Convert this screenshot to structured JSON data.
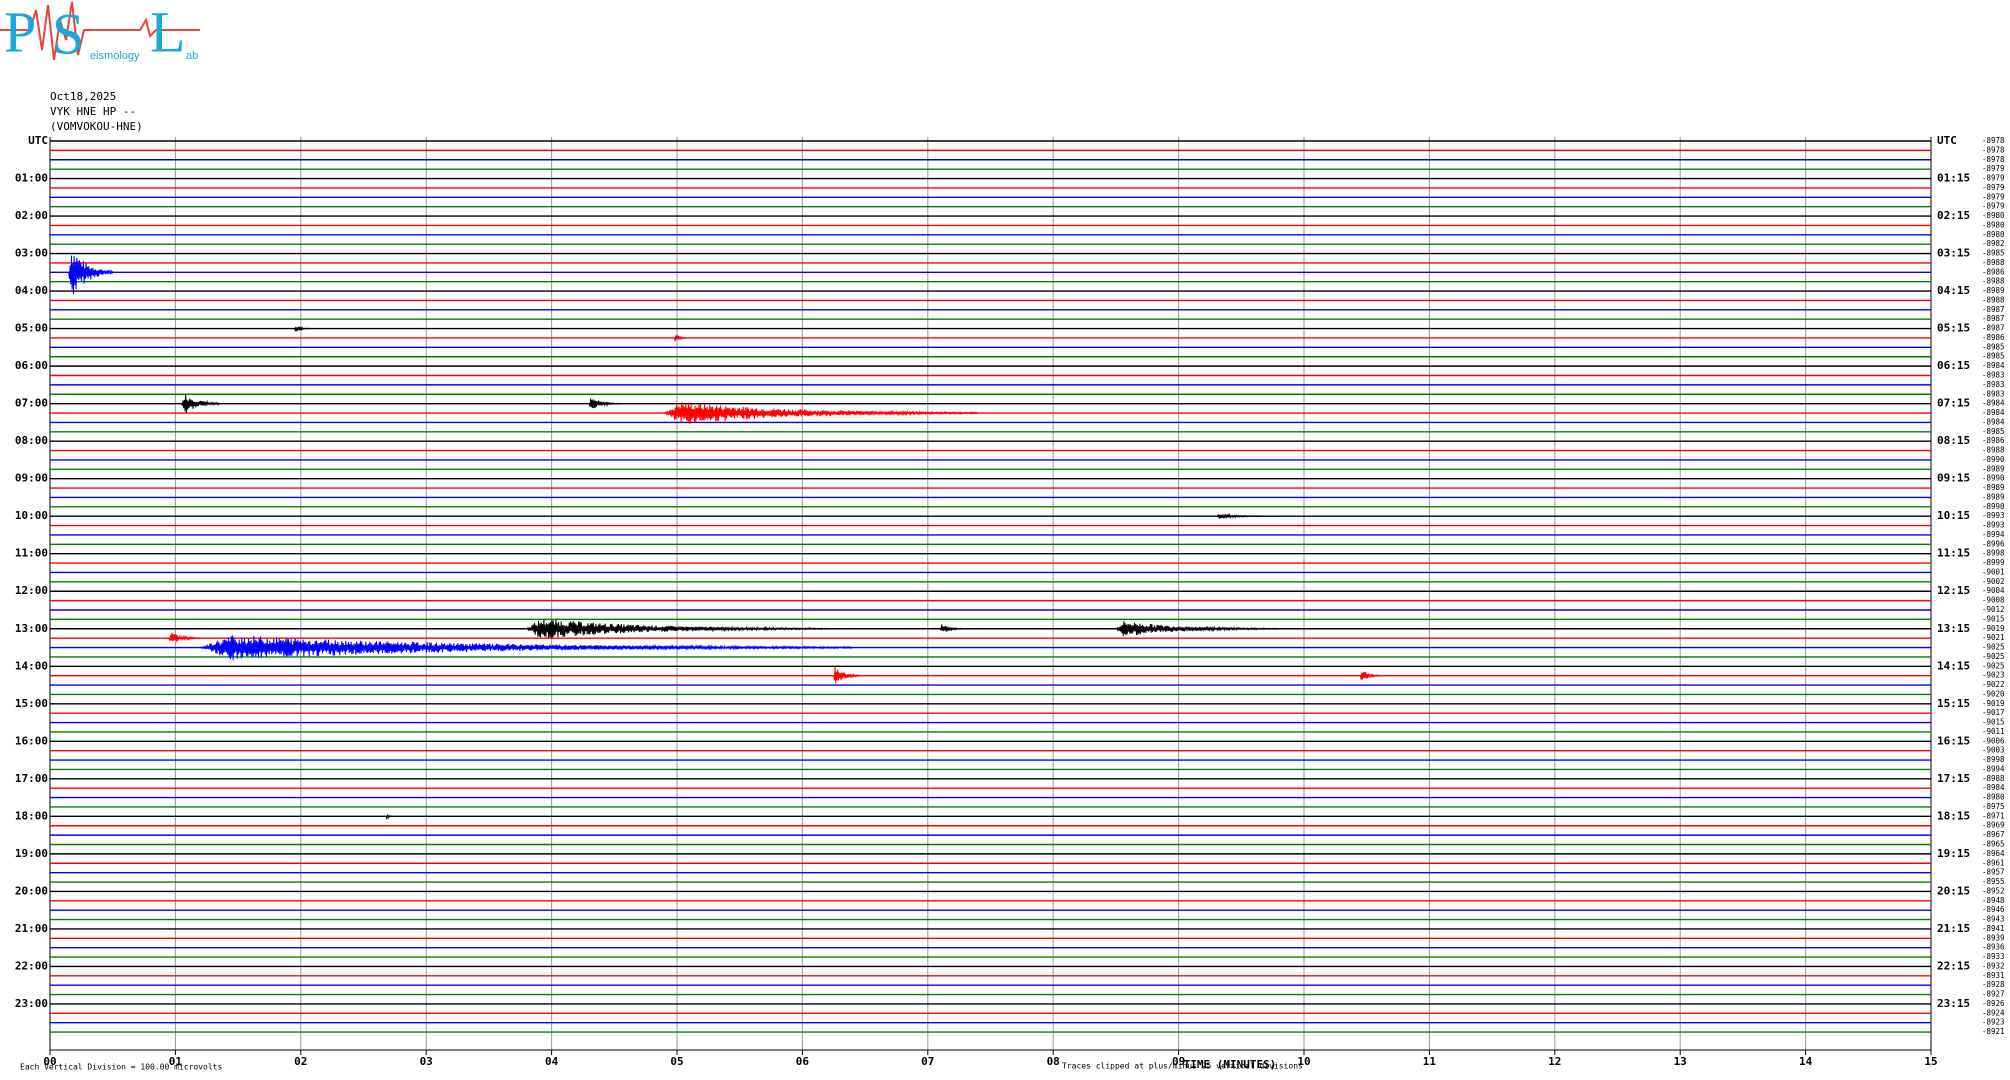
{
  "chart_data": {
    "type": "helicorder",
    "logo": {
      "letters": [
        "P",
        "S",
        "L"
      ],
      "small": [
        "eismology",
        "ab"
      ]
    },
    "header": [
      "Oct18,2025",
      "VYK HNE HP --",
      "(VOMVOKOU-HNE)"
    ],
    "left_labels": [
      "UTC",
      "01:00",
      "02:00",
      "03:00",
      "04:00",
      "05:00",
      "06:00",
      "07:00",
      "08:00",
      "09:00",
      "10:00",
      "11:00",
      "12:00",
      "13:00",
      "14:00",
      "15:00",
      "16:00",
      "17:00",
      "18:00",
      "19:00",
      "20:00",
      "21:00",
      "22:00",
      "23:00"
    ],
    "right_labels": [
      "UTC",
      "01:15",
      "02:15",
      "03:15",
      "04:15",
      "05:15",
      "06:15",
      "07:15",
      "08:15",
      "09:15",
      "10:15",
      "11:15",
      "12:15",
      "13:15",
      "14:15",
      "15:15",
      "16:15",
      "17:15",
      "18:15",
      "19:15",
      "20:15",
      "21:15",
      "22:15",
      "23:15"
    ],
    "offsets": [
      -8978,
      -8978,
      -8978,
      -8979,
      -8979,
      -8979,
      -8979,
      -8979,
      -8980,
      -8980,
      -8980,
      -8982,
      -8985,
      -8988,
      -8986,
      -8988,
      -8989,
      -8988,
      -8987,
      -8987,
      -8987,
      -8986,
      -8985,
      -8985,
      -8984,
      -8983,
      -8983,
      -8983,
      -8984,
      -8984,
      -8984,
      -8985,
      -8986,
      -8988,
      -8990,
      -8989,
      -8990,
      -8989,
      -8989,
      -8990,
      -8993,
      -8993,
      -8994,
      -8996,
      -8998,
      -8999,
      -9001,
      -9002,
      -9004,
      -9008,
      -9012,
      -9015,
      -9019,
      -9021,
      -9025,
      -9025,
      -9025,
      -9023,
      -9022,
      -9020,
      -9019,
      -9017,
      -9015,
      -9011,
      -9006,
      -9003,
      -8998,
      -8994,
      -8988,
      -8984,
      -8980,
      -8975,
      -8971,
      -8969,
      -8967,
      -8965,
      -8964,
      -8961,
      -8957,
      -8955,
      -8952,
      -8948,
      -8946,
      -8943,
      -8941,
      -8939,
      -8936,
      -8933,
      -8932,
      -8931,
      -8928,
      -8927,
      -8926,
      -8924,
      -8923,
      -8921
    ],
    "row_colors": [
      "#000000",
      "#ff0000",
      "#0000ff",
      "#008000"
    ],
    "xlim": [
      0,
      15
    ],
    "xticks": [
      {
        "value": 0,
        "label": "00"
      },
      {
        "value": 1,
        "label": "01"
      },
      {
        "value": 2,
        "label": "02"
      },
      {
        "value": 3,
        "label": "03"
      },
      {
        "value": 4,
        "label": "04"
      },
      {
        "value": 5,
        "label": "05"
      },
      {
        "value": 6,
        "label": "06"
      },
      {
        "value": 7,
        "label": "07"
      },
      {
        "value": 8,
        "label": "08"
      },
      {
        "value": 9,
        "label": "09"
      },
      {
        "value": 10,
        "label": "10"
      },
      {
        "value": 11,
        "label": "11"
      },
      {
        "value": 12,
        "label": "12"
      },
      {
        "value": 13,
        "label": "13"
      },
      {
        "value": 14,
        "label": "14"
      },
      {
        "value": 15,
        "label": "15"
      }
    ],
    "xlabel": "TIME (MINUTES)",
    "scale_note": "Each Vertical Division =  100.00 microvolts",
    "clip_note": "Traces clipped at plus/minus 25 vertical divisions",
    "events": [
      {
        "row": 14,
        "minute": 0.15,
        "duration": 0.35,
        "amplitude": 3.5
      },
      {
        "row": 20,
        "minute": 1.95,
        "duration": 0.12,
        "amplitude": 0.5
      },
      {
        "row": 21,
        "minute": 4.98,
        "duration": 0.1,
        "amplitude": 0.6
      },
      {
        "row": 28,
        "minute": 1.05,
        "duration": 0.3,
        "amplitude": 1.6
      },
      {
        "row": 28,
        "minute": 4.3,
        "duration": 0.25,
        "amplitude": 0.8
      },
      {
        "row": 29,
        "minute": 4.9,
        "duration": 2.5,
        "amplitude": 1.5
      },
      {
        "row": 40,
        "minute": 9.3,
        "duration": 0.5,
        "amplitude": 0.3
      },
      {
        "row": 52,
        "minute": 3.8,
        "duration": 2.4,
        "amplitude": 1.3
      },
      {
        "row": 52,
        "minute": 7.1,
        "duration": 0.2,
        "amplitude": 0.6
      },
      {
        "row": 52,
        "minute": 8.5,
        "duration": 1.3,
        "amplitude": 1.0
      },
      {
        "row": 53,
        "minute": 0.95,
        "duration": 0.25,
        "amplitude": 0.8
      },
      {
        "row": 54,
        "minute": 1.2,
        "duration": 5.2,
        "amplitude": 1.6
      },
      {
        "row": 57,
        "minute": 6.25,
        "duration": 0.2,
        "amplitude": 1.3
      },
      {
        "row": 57,
        "minute": 10.45,
        "duration": 0.15,
        "amplitude": 0.9
      },
      {
        "row": 72,
        "minute": 2.68,
        "duration": 0.05,
        "amplitude": 0.4
      }
    ]
  }
}
